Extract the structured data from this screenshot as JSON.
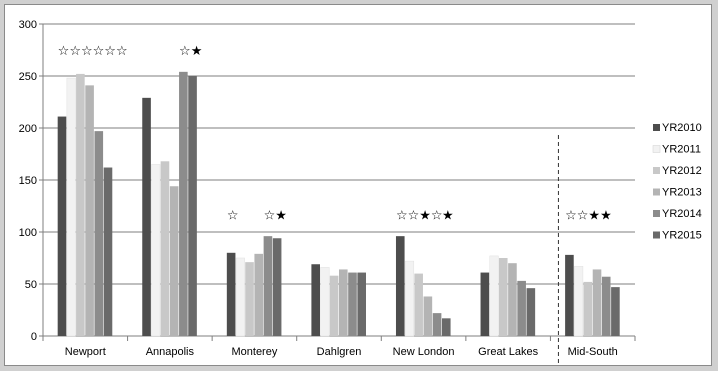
{
  "chart_data": {
    "type": "bar",
    "title": "",
    "xlabel": "",
    "ylabel": "",
    "ylim": [
      0,
      300
    ],
    "yticks": [
      "0",
      "50",
      "100",
      "150",
      "200",
      "250",
      "300"
    ],
    "grid": true,
    "legend_position": "right",
    "categories": [
      "Newport",
      "Annapolis",
      "Monterey",
      "Dahlgren",
      "New London",
      "Great Lakes",
      "Mid-South"
    ],
    "series": [
      {
        "name": "YR2010",
        "color": "#4d4d4d",
        "values": [
          211,
          229,
          80,
          69,
          96,
          61,
          78
        ]
      },
      {
        "name": "YR2011",
        "color": "#f2f2f2",
        "values": [
          248,
          165,
          75,
          66,
          72,
          77,
          67
        ]
      },
      {
        "name": "YR2012",
        "color": "#c8c8c8",
        "values": [
          252,
          168,
          71,
          58,
          60,
          75,
          52
        ]
      },
      {
        "name": "YR2013",
        "color": "#b4b4b4",
        "values": [
          241,
          144,
          79,
          64,
          38,
          70,
          64
        ]
      },
      {
        "name": "YR2014",
        "color": "#8c8c8c",
        "values": [
          197,
          254,
          96,
          61,
          22,
          53,
          57
        ]
      },
      {
        "name": "YR2015",
        "color": "#6a6a6a",
        "values": [
          162,
          250,
          94,
          61,
          17,
          46,
          47
        ]
      }
    ],
    "annotations": [
      {
        "category": "Newport",
        "series_start": 0,
        "text": "☆☆☆☆☆☆",
        "y": 275
      },
      {
        "category": "Annapolis",
        "series_start": 4,
        "text": "☆★",
        "y": 275
      },
      {
        "category": "Monterey",
        "series_start": 0,
        "text": "☆",
        "y": 117
      },
      {
        "category": "Monterey",
        "series_start": 4,
        "text": "☆★",
        "y": 117
      },
      {
        "category": "New London",
        "series_start": 0,
        "text": "☆☆★☆",
        "y": 117
      },
      {
        "category": "New London",
        "series_start": 5,
        "text": "★",
        "y": 117
      },
      {
        "category": "Mid-South",
        "series_start": 0,
        "text": "☆☆★★",
        "y": 117
      }
    ],
    "separator_before_category": "Mid-South"
  }
}
